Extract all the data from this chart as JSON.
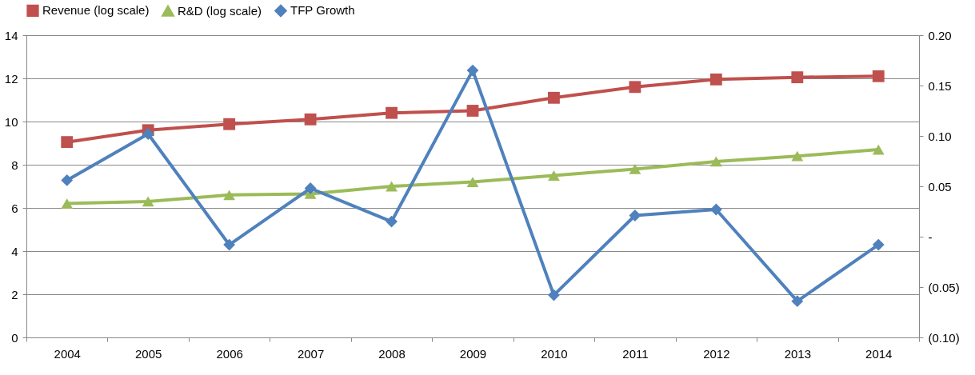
{
  "chart_data": {
    "type": "line",
    "categories": [
      "2004",
      "2005",
      "2006",
      "2007",
      "2008",
      "2009",
      "2010",
      "2011",
      "2012",
      "2013",
      "2014"
    ],
    "series": [
      {
        "name": "Revenue (log scale)",
        "color": "#c0504d",
        "marker": "square",
        "values": [
          9.05,
          9.6,
          9.88,
          10.1,
          10.4,
          10.5,
          11.1,
          11.6,
          11.95,
          12.05,
          12.1
        ]
      },
      {
        "name": "R&D (log scale)",
        "color": "#9bbb59",
        "marker": "triangle",
        "values": [
          6.2,
          6.3,
          6.6,
          6.65,
          7.0,
          7.2,
          7.5,
          7.8,
          8.15,
          8.4,
          8.7
        ]
      },
      {
        "name": "TFP Growth",
        "color": "#4f81bd",
        "marker": "diamond",
        "axis": "y2",
        "values": [
          0.056,
          0.102,
          -0.008,
          0.048,
          0.015,
          0.165,
          -0.058,
          0.021,
          0.027,
          -0.064,
          -0.008
        ]
      }
    ],
    "ylim": [
      0,
      14
    ],
    "yticks": [
      0,
      2,
      4,
      6,
      8,
      10,
      12,
      14
    ],
    "y2lim": [
      -0.1,
      0.2
    ],
    "y2ticks": [
      {
        "value": 0.2,
        "label": "0.20"
      },
      {
        "value": 0.15,
        "label": "0.15"
      },
      {
        "value": 0.1,
        "label": "0.10"
      },
      {
        "value": 0.05,
        "label": "0.05"
      },
      {
        "value": 0,
        "label": "-"
      },
      {
        "value": -0.05,
        "label": "(0.05)"
      },
      {
        "value": -0.1,
        "label": "(0.10)"
      }
    ],
    "grid": "y",
    "legend": "top",
    "line_style": "solid"
  }
}
